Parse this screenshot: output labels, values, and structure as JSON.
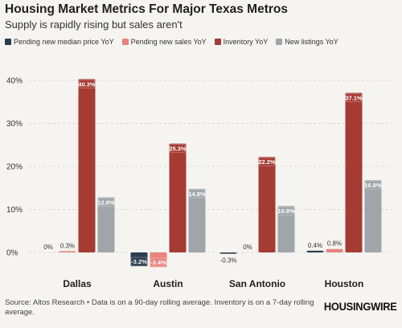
{
  "title": "Housing Market Metrics For Major Texas Metros",
  "subtitle": "Supply is rapidly rising but sales aren't",
  "source": "Source: Altos Research • Data is on a 90-day rolling average. Inventory is on a 7-day rolling average.",
  "brand": "HOUSINGWIRE",
  "chart_data": {
    "type": "bar",
    "categories": [
      "Dallas",
      "Austin",
      "San Antonio",
      "Houston"
    ],
    "series": [
      {
        "name": "Pending new median price YoY",
        "color": "#2c3e4f",
        "values": [
          0,
          -3.2,
          -0.3,
          0.4
        ],
        "labels": [
          "0%",
          "-3.2%",
          "-0.3%",
          "0.4%"
        ]
      },
      {
        "name": "Pending new sales YoY",
        "color": "#e8837f",
        "values": [
          0.3,
          -3.4,
          0,
          0.8
        ],
        "labels": [
          "0.3%",
          "-3.4%",
          "0%",
          "0.8%"
        ]
      },
      {
        "name": "Inventory YoY",
        "color": "#a63b34",
        "values": [
          40.3,
          25.3,
          22.2,
          37.1
        ],
        "labels": [
          "40.3%",
          "25.3%",
          "22.2%",
          "37.1%"
        ]
      },
      {
        "name": "New listings YoY",
        "color": "#9fa5a9",
        "values": [
          12.8,
          14.8,
          10.8,
          16.8
        ],
        "labels": [
          "12.8%",
          "14.8%",
          "10.8%",
          "16.8%"
        ]
      }
    ],
    "yticks": [
      "0%",
      "10%",
      "20%",
      "30%",
      "40%"
    ],
    "ylim": [
      -5,
      43
    ],
    "grid": true,
    "legend_position": "top-left"
  }
}
